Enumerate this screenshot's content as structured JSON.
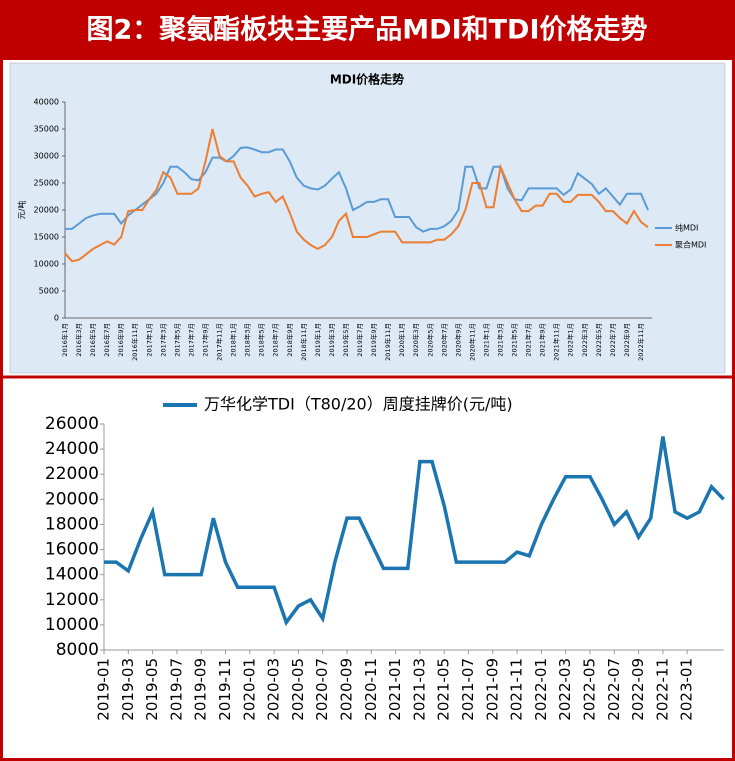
{
  "header": {
    "title": "图2：聚氨酯板块主要产品MDI和TDI价格走势"
  },
  "chart_data": [
    {
      "type": "line",
      "title": "MDI价格走势",
      "y_label": "元/吨",
      "categories": [
        "2016年1月",
        null,
        "2016年3月",
        null,
        "2016年5月",
        null,
        "2016年7月",
        null,
        "2016年9月",
        null,
        "2016年11月",
        null,
        "2017年1月",
        null,
        "2017年3月",
        null,
        "2017年5月",
        null,
        "2017年7月",
        null,
        "2017年9月",
        null,
        "2017年11月",
        null,
        "2018年1月",
        null,
        "2018年3月",
        null,
        "2018年5月",
        null,
        "2018年7月",
        null,
        "2018年9月",
        null,
        "2018年11月",
        null,
        "2019年1月",
        null,
        "2019年3月",
        null,
        "2019年5月",
        null,
        "2019年7月",
        null,
        "2019年9月",
        null,
        "2019年11月",
        null,
        "2020年1月",
        null,
        "2020年3月",
        null,
        "2020年5月",
        null,
        "2020年7月",
        null,
        "2020年9月",
        null,
        "2020年11月",
        null,
        "2021年1月",
        null,
        "2021年3月",
        null,
        "2021年5月",
        null,
        "2021年7月",
        null,
        "2021年9月",
        null,
        "2021年11月",
        null,
        "2022年1月",
        null,
        "2022年3月",
        null,
        "2022年5月",
        null,
        "2022年7月",
        null,
        "2022年9月",
        null,
        "2022年11月",
        null
      ],
      "series": [
        {
          "name": "纯MDI",
          "color": "#5b9bd5",
          "values": [
            16500,
            16500,
            17500,
            18500,
            19000,
            19300,
            19300,
            19300,
            17500,
            19000,
            20000,
            21000,
            22000,
            23000,
            25000,
            28000,
            28000,
            27000,
            25700,
            25500,
            27000,
            29700,
            29700,
            29000,
            30000,
            31500,
            31600,
            31200,
            30700,
            30700,
            31200,
            31200,
            29000,
            26000,
            24500,
            24000,
            23800,
            24500,
            25800,
            27000,
            24000,
            20000,
            20700,
            21500,
            21500,
            22000,
            22000,
            18700,
            18700,
            18700,
            16800,
            16000,
            16500,
            16500,
            17000,
            18000,
            20000,
            28000,
            28000,
            24000,
            24000,
            28000,
            28000,
            24000,
            22000,
            21800,
            24000,
            24000,
            24000,
            24000,
            24000,
            22800,
            23800,
            26800,
            25800,
            24800,
            23000,
            24000,
            22500,
            21000,
            23000,
            23000,
            23000,
            20000
          ]
        },
        {
          "name": "聚合MDI",
          "color": "#ed7d31",
          "values": [
            12000,
            10500,
            10800,
            11800,
            12800,
            13500,
            14200,
            13600,
            15000,
            19800,
            20000,
            20000,
            22000,
            23700,
            27000,
            26000,
            23000,
            23000,
            23000,
            24000,
            29000,
            35000,
            30000,
            29000,
            29000,
            26000,
            24500,
            22500,
            23000,
            23300,
            21500,
            22500,
            19500,
            16000,
            14500,
            13500,
            12800,
            13500,
            15000,
            18000,
            19300,
            15000,
            15000,
            15000,
            15500,
            16000,
            16000,
            16000,
            14000,
            14000,
            14000,
            14000,
            14000,
            14500,
            14500,
            15500,
            17000,
            20000,
            25000,
            25000,
            20500,
            20500,
            28000,
            25000,
            22000,
            19800,
            19800,
            20800,
            20800,
            23000,
            23000,
            21500,
            21500,
            22800,
            22800,
            22800,
            21500,
            19800,
            19800,
            18500,
            17500,
            19800,
            17800,
            16800
          ]
        }
      ],
      "ylim": [
        0,
        40000
      ],
      "yticks": [
        0,
        5000,
        10000,
        15000,
        20000,
        25000,
        30000,
        35000,
        40000
      ],
      "legend": "right"
    },
    {
      "type": "line",
      "x": [
        "2019-01",
        "2019-02",
        "2019-03",
        "2019-04",
        "2019-05",
        "2019-06",
        "2019-07",
        "2019-08",
        "2019-09",
        "2019-10",
        "2019-11",
        "2019-12",
        "2020-01",
        "2020-02",
        "2020-03",
        "2020-04",
        "2020-05",
        "2020-06",
        "2020-07",
        "2020-08",
        "2020-09",
        "2020-10",
        "2020-11",
        "2020-12",
        "2021-01",
        "2021-02",
        "2021-03",
        "2021-04",
        "2021-05",
        "2021-06",
        "2021-07",
        "2021-08",
        "2021-09",
        "2021-10",
        "2021-11",
        "2021-12",
        "2022-01",
        "2022-02",
        "2022-03",
        "2022-04",
        "2022-05",
        "2022-06",
        "2022-07",
        "2022-08",
        "2022-09",
        "2022-10",
        "2022-11",
        "2022-12",
        "2023-01",
        "2023-02",
        "2023-03",
        "2023-04"
      ],
      "series": [
        {
          "name": "万华化学TDI（T80/20）周度挂牌价(元/吨)",
          "color": "#1b75b0",
          "values": [
            15000,
            15000,
            14300,
            16800,
            19000,
            14000,
            14000,
            14000,
            14000,
            18500,
            15000,
            13000,
            13000,
            13000,
            13000,
            10200,
            11500,
            12000,
            10500,
            15000,
            18500,
            18500,
            16500,
            14500,
            14500,
            14500,
            23000,
            23000,
            19500,
            15000,
            15000,
            15000,
            15000,
            15000,
            15800,
            15500,
            18000,
            20000,
            21800,
            21800,
            21800,
            20000,
            18000,
            19000,
            17000,
            18500,
            25000,
            19000,
            18500,
            19000,
            21000,
            20000
          ]
        }
      ],
      "xlim": [
        "2019-01",
        "2023-04"
      ],
      "xticks": [
        "2019-01",
        "2019-03",
        "2019-05",
        "2019-07",
        "2019-09",
        "2019-11",
        "2020-01",
        "2020-03",
        "2020-05",
        "2020-07",
        "2020-09",
        "2020-11",
        "2021-01",
        "2021-03",
        "2021-05",
        "2021-07",
        "2021-09",
        "2021-11",
        "2022-01",
        "2022-03",
        "2022-05",
        "2022-07",
        "2022-09",
        "2022-11",
        "2023-01"
      ],
      "ylim": [
        8000,
        26000
      ],
      "yticks": [
        8000,
        10000,
        12000,
        14000,
        16000,
        18000,
        20000,
        22000,
        24000,
        26000
      ],
      "legend": "top"
    }
  ]
}
